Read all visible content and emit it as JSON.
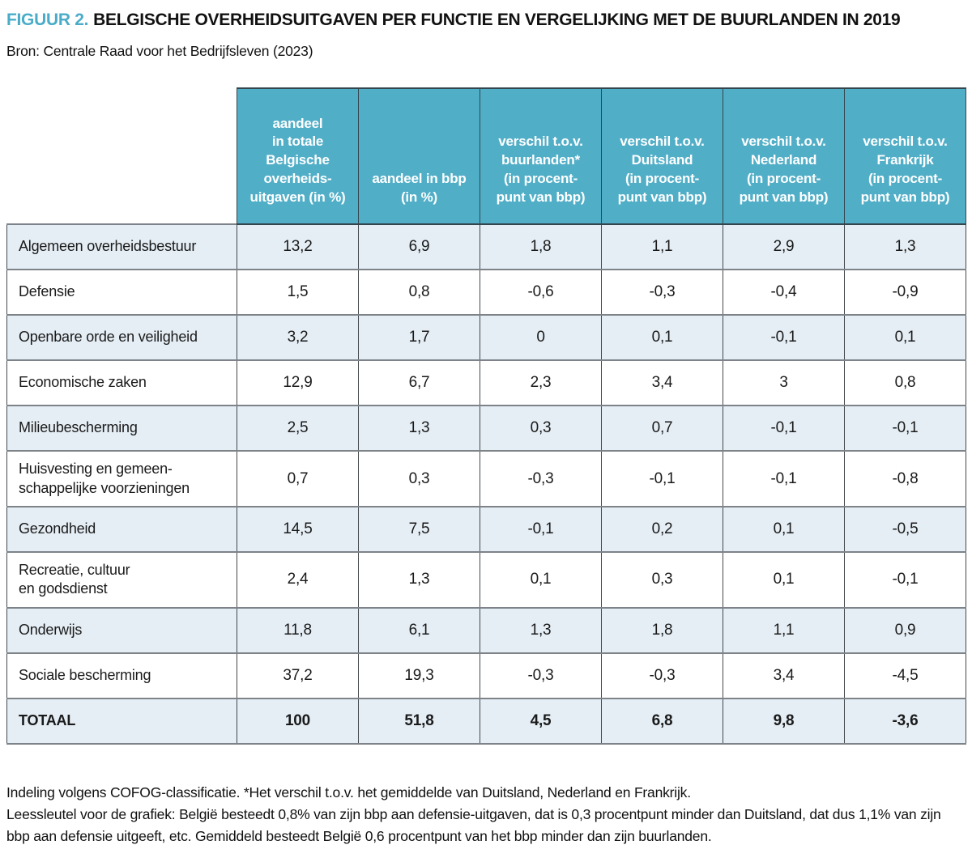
{
  "figure": {
    "label": "FIGUUR 2.",
    "title": "BELGISCHE OVERHEIDSUITGAVEN PER FUNCTIE EN VERGELIJKING MET DE BUURLANDEN IN 2019",
    "source": "Bron: Centrale Raad voor het Bedrijfsleven (2023)"
  },
  "colors": {
    "accent_teal": "#4aacc8",
    "header_bg": "#51aec7",
    "row_alt_bg": "#e5eef5",
    "row_bg": "#ffffff",
    "border_vertical": "#44494d",
    "border_horizontal": "#7d8388",
    "header_text": "#ffffff",
    "body_text": "#1a1a1a"
  },
  "chart_data": {
    "type": "table",
    "title": "Belgische overheidsuitgaven per functie en vergelijking met de buurlanden in 2019",
    "columns": [
      "aandeel\nin totale\nBelgische\noverheids-\nuitgaven (in %)",
      "aandeel in bbp\n(in %)",
      "verschil t.o.v.\nbuurlanden*\n(in procent-\npunt van bbp)",
      "verschil t.o.v.\nDuitsland\n(in procent-\npunt van bbp)",
      "verschil t.o.v.\nNederland\n(in procent-\npunt van bbp)",
      "verschil t.o.v.\nFrankrijk\n(in procent-\npunt van bbp)"
    ],
    "rows": [
      {
        "label": "Algemeen overheidsbestuur",
        "values": [
          "13,2",
          "6,9",
          "1,8",
          "1,1",
          "2,9",
          "1,3"
        ],
        "total": false
      },
      {
        "label": "Defensie",
        "values": [
          "1,5",
          "0,8",
          "-0,6",
          "-0,3",
          "-0,4",
          "-0,9"
        ],
        "total": false
      },
      {
        "label": "Openbare orde en veiligheid",
        "values": [
          "3,2",
          "1,7",
          "0",
          "0,1",
          "-0,1",
          "0,1"
        ],
        "total": false
      },
      {
        "label": "Economische zaken",
        "values": [
          "12,9",
          "6,7",
          "2,3",
          "3,4",
          "3",
          "0,8"
        ],
        "total": false
      },
      {
        "label": "Milieubescherming",
        "values": [
          "2,5",
          "1,3",
          "0,3",
          "0,7",
          "-0,1",
          "-0,1"
        ],
        "total": false
      },
      {
        "label": "Huisvesting en gemeen-\nschappelijke voorzieningen",
        "values": [
          "0,7",
          "0,3",
          "-0,3",
          "-0,1",
          "-0,1",
          "-0,8"
        ],
        "total": false
      },
      {
        "label": "Gezondheid",
        "values": [
          "14,5",
          "7,5",
          "-0,1",
          "0,2",
          "0,1",
          "-0,5"
        ],
        "total": false
      },
      {
        "label": "Recreatie, cultuur\nen godsdienst",
        "values": [
          "2,4",
          "1,3",
          "0,1",
          "0,3",
          "0,1",
          "-0,1"
        ],
        "total": false
      },
      {
        "label": "Onderwijs",
        "values": [
          "11,8",
          "6,1",
          "1,3",
          "1,8",
          "1,1",
          "0,9"
        ],
        "total": false
      },
      {
        "label": "Sociale bescherming",
        "values": [
          "37,2",
          "19,3",
          "-0,3",
          "-0,3",
          "3,4",
          "-4,5"
        ],
        "total": false
      },
      {
        "label": "TOTAAL",
        "values": [
          "100",
          "51,8",
          "4,5",
          "6,8",
          "9,8",
          "-3,6"
        ],
        "total": true
      }
    ]
  },
  "footnotes": [
    "Indeling volgens COFOG-classificatie. *Het verschil t.o.v. het gemiddelde van Duitsland, Nederland en Frankrijk.",
    "Leessleutel voor de grafiek: België besteedt 0,8% van zijn bbp aan defensie-uitgaven, dat is 0,3 procentpunt minder dan Duitsland, dat dus 1,1% van zijn bbp aan defensie uitgeeft, etc. Gemiddeld besteedt België 0,6 procentpunt van het bbp minder dan zijn buurlanden."
  ]
}
